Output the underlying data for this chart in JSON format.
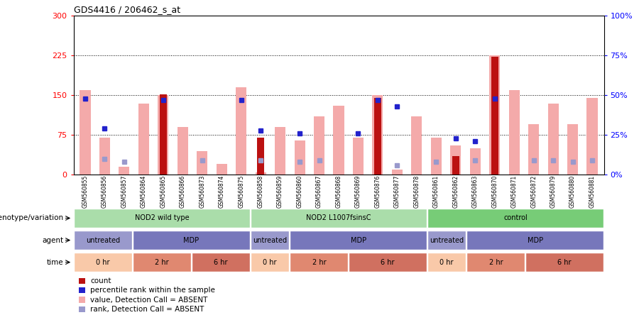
{
  "title": "GDS4416 / 206462_s_at",
  "samples": [
    "GSM560855",
    "GSM560856",
    "GSM560857",
    "GSM560864",
    "GSM560865",
    "GSM560866",
    "GSM560873",
    "GSM560874",
    "GSM560875",
    "GSM560858",
    "GSM560859",
    "GSM560860",
    "GSM560867",
    "GSM560868",
    "GSM560869",
    "GSM560876",
    "GSM560877",
    "GSM560878",
    "GSM560861",
    "GSM560862",
    "GSM560863",
    "GSM560870",
    "GSM560871",
    "GSM560872",
    "GSM560879",
    "GSM560880",
    "GSM560881"
  ],
  "pink_bars": [
    160,
    70,
    15,
    135,
    150,
    90,
    45,
    20,
    165,
    5,
    90,
    65,
    110,
    130,
    70,
    150,
    10,
    110,
    70,
    55,
    50,
    225,
    160,
    95,
    135,
    95,
    145
  ],
  "red_bars": [
    0,
    0,
    0,
    0,
    152,
    0,
    0,
    0,
    0,
    70,
    0,
    0,
    0,
    0,
    0,
    145,
    0,
    0,
    0,
    35,
    0,
    222,
    0,
    0,
    0,
    0,
    0
  ],
  "blue_squares_pct": [
    48,
    29,
    0,
    0,
    47,
    0,
    0,
    0,
    47,
    28,
    0,
    26,
    0,
    0,
    26,
    47,
    43,
    0,
    0,
    23,
    21,
    48,
    0,
    0,
    0,
    0,
    0
  ],
  "light_blue_squares_pct": [
    0,
    10,
    8,
    0,
    0,
    0,
    9,
    0,
    0,
    9,
    0,
    8,
    9,
    0,
    0,
    0,
    6,
    0,
    8,
    0,
    9,
    0,
    0,
    9,
    9,
    8,
    9
  ],
  "ylim_left": [
    0,
    300
  ],
  "ylim_right": [
    0,
    100
  ],
  "yticks_left": [
    0,
    75,
    150,
    225,
    300
  ],
  "yticks_right": [
    0,
    25,
    50,
    75,
    100
  ],
  "ytick_labels_left": [
    "0",
    "75",
    "150",
    "225",
    "300"
  ],
  "ytick_labels_right": [
    "0%",
    "25%",
    "50%",
    "75%",
    "100%"
  ],
  "hlines": [
    75,
    150,
    225
  ],
  "genotype_groups": [
    {
      "label": "NOD2 wild type",
      "start": 0,
      "end": 9,
      "color": "#AADDAA"
    },
    {
      "label": "NOD2 L1007fsinsC",
      "start": 9,
      "end": 18,
      "color": "#AADDAA"
    },
    {
      "label": "control",
      "start": 18,
      "end": 27,
      "color": "#66CC66"
    }
  ],
  "agent_groups": [
    {
      "label": "untreated",
      "start": 0,
      "end": 3,
      "color": "#9999CC"
    },
    {
      "label": "MDP",
      "start": 3,
      "end": 9,
      "color": "#7777BB"
    },
    {
      "label": "untreated",
      "start": 9,
      "end": 11,
      "color": "#9999CC"
    },
    {
      "label": "MDP",
      "start": 11,
      "end": 18,
      "color": "#7777BB"
    },
    {
      "label": "untreated",
      "start": 18,
      "end": 20,
      "color": "#9999CC"
    },
    {
      "label": "MDP",
      "start": 20,
      "end": 27,
      "color": "#7777BB"
    }
  ],
  "time_groups": [
    {
      "label": "0 hr",
      "start": 0,
      "end": 3,
      "color": "#F9C9A9"
    },
    {
      "label": "2 hr",
      "start": 3,
      "end": 6,
      "color": "#E08870"
    },
    {
      "label": "6 hr",
      "start": 6,
      "end": 9,
      "color": "#D07060"
    },
    {
      "label": "0 hr",
      "start": 9,
      "end": 11,
      "color": "#F9C9A9"
    },
    {
      "label": "2 hr",
      "start": 11,
      "end": 14,
      "color": "#E08870"
    },
    {
      "label": "6 hr",
      "start": 14,
      "end": 18,
      "color": "#D07060"
    },
    {
      "label": "0 hr",
      "start": 18,
      "end": 20,
      "color": "#F9C9A9"
    },
    {
      "label": "2 hr",
      "start": 20,
      "end": 23,
      "color": "#E08870"
    },
    {
      "label": "6 hr",
      "start": 23,
      "end": 27,
      "color": "#D07060"
    }
  ],
  "bar_width": 0.55,
  "red_bar_width": 0.35,
  "pink_color": "#F4AAAA",
  "red_color": "#BB1111",
  "blue_color": "#2222CC",
  "light_blue_color": "#9999CC",
  "legend_items": [
    {
      "color": "#BB1111",
      "label": "count"
    },
    {
      "color": "#2222CC",
      "label": "percentile rank within the sample"
    },
    {
      "color": "#F4AAAA",
      "label": "value, Detection Call = ABSENT"
    },
    {
      "color": "#9999CC",
      "label": "rank, Detection Call = ABSENT"
    }
  ]
}
